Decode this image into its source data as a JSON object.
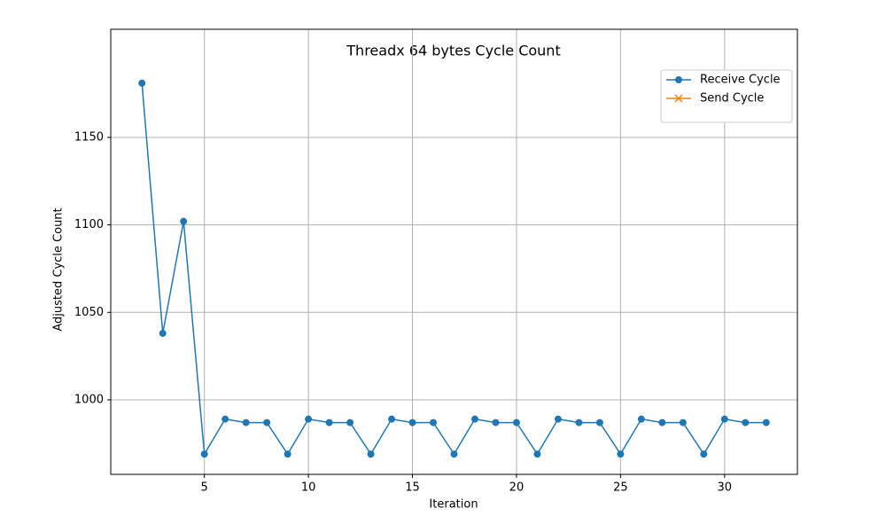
{
  "chart_data": {
    "type": "line",
    "title": "Threadx 64 bytes Cycle Count",
    "xlabel": "Iteration",
    "ylabel": "Adjusted Cycle Count",
    "x": [
      2,
      3,
      4,
      5,
      6,
      7,
      8,
      9,
      10,
      11,
      12,
      13,
      14,
      15,
      16,
      17,
      18,
      19,
      20,
      21,
      22,
      23,
      24,
      25,
      26,
      27,
      28,
      29,
      30,
      31,
      32
    ],
    "series": [
      {
        "name": "Receive Cycle",
        "color": "#1f77b4",
        "marker": "o",
        "values": [
          1181,
          1038,
          1102,
          969,
          989,
          987,
          987,
          969,
          989,
          987,
          987,
          969,
          989,
          987,
          987,
          969,
          989,
          987,
          987,
          969,
          989,
          987,
          987,
          969,
          989,
          987,
          987,
          969,
          989,
          987,
          987
        ]
      },
      {
        "name": "Send Cycle",
        "color": "#ff7f0e",
        "marker": "x",
        "values": [
          null,
          null,
          null,
          null,
          null,
          null,
          null,
          null,
          null,
          null,
          null,
          null,
          null,
          null,
          null,
          null,
          null,
          null,
          null,
          null,
          null,
          null,
          null,
          null,
          null,
          null,
          null,
          null,
          null,
          null,
          null
        ]
      }
    ],
    "xlim": [
      0.5,
      33.5
    ],
    "ylim": [
      957.4,
      1211.8
    ],
    "xticks": [
      5,
      10,
      15,
      20,
      25,
      30
    ],
    "yticks": [
      1000,
      1050,
      1100,
      1150
    ],
    "grid": true,
    "legend": "upper right"
  }
}
